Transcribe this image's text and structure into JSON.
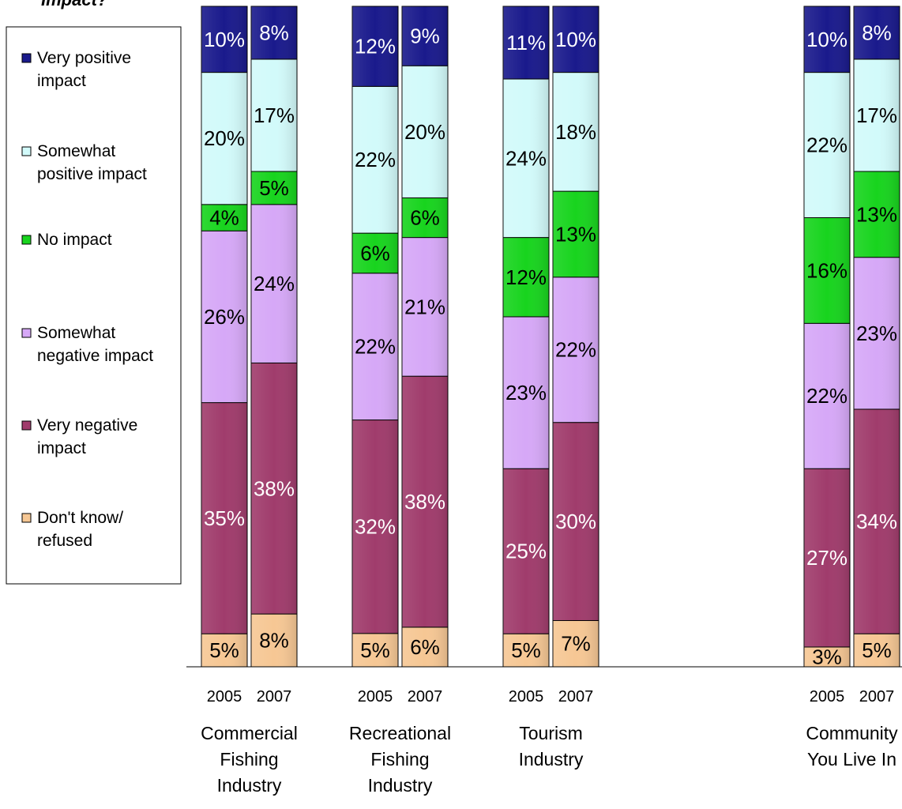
{
  "title_fragment": "Impact?",
  "colors": {
    "very_positive": "#1a1a8c",
    "somewhat_positive": "#d2fafa",
    "no_impact": "#18d41e",
    "somewhat_negative": "#d6a8f7",
    "very_negative": "#a03c6c",
    "dont_know": "#f6c794"
  },
  "legend": [
    {
      "key": "very_positive",
      "lines": [
        "Very positive",
        "impact"
      ]
    },
    {
      "key": "somewhat_positive",
      "lines": [
        "Somewhat",
        "positive impact"
      ]
    },
    {
      "key": "no_impact",
      "lines": [
        "No impact"
      ]
    },
    {
      "key": "somewhat_negative",
      "lines": [
        "Somewhat",
        "negative impact"
      ]
    },
    {
      "key": "very_negative",
      "lines": [
        "Very negative",
        "impact"
      ]
    },
    {
      "key": "dont_know",
      "lines": [
        "Don't know/",
        "refused"
      ]
    }
  ],
  "chart_data": {
    "type": "bar",
    "stacked": true,
    "ylim": [
      0,
      100
    ],
    "grid": false,
    "legend_position": "left",
    "series_order_bottom_to_top": [
      "dont_know",
      "very_negative",
      "somewhat_negative",
      "no_impact",
      "somewhat_positive",
      "very_positive"
    ],
    "groups": [
      {
        "label_lines": [
          "Commercial",
          "Fishing",
          "Industry"
        ],
        "bars": [
          {
            "year": "2005",
            "values": {
              "dont_know": 5,
              "very_negative": 35,
              "somewhat_negative": 26,
              "no_impact": 4,
              "somewhat_positive": 20,
              "very_positive": 10
            }
          },
          {
            "year": "2007",
            "values": {
              "dont_know": 8,
              "very_negative": 38,
              "somewhat_negative": 24,
              "no_impact": 5,
              "somewhat_positive": 17,
              "very_positive": 8
            }
          }
        ]
      },
      {
        "label_lines": [
          "Recreational",
          "Fishing",
          "Industry"
        ],
        "bars": [
          {
            "year": "2005",
            "values": {
              "dont_know": 5,
              "very_negative": 32,
              "somewhat_negative": 22,
              "no_impact": 6,
              "somewhat_positive": 22,
              "very_positive": 12
            }
          },
          {
            "year": "2007",
            "values": {
              "dont_know": 6,
              "very_negative": 38,
              "somewhat_negative": 21,
              "no_impact": 6,
              "somewhat_positive": 20,
              "very_positive": 9
            }
          }
        ]
      },
      {
        "label_lines": [
          "Tourism",
          "Industry"
        ],
        "bars": [
          {
            "year": "2005",
            "values": {
              "dont_know": 5,
              "very_negative": 25,
              "somewhat_negative": 23,
              "no_impact": 12,
              "somewhat_positive": 24,
              "very_positive": 11
            }
          },
          {
            "year": "2007",
            "values": {
              "dont_know": 7,
              "very_negative": 30,
              "somewhat_negative": 22,
              "no_impact": 13,
              "somewhat_positive": 18,
              "very_positive": 10
            }
          }
        ]
      },
      {
        "label_lines": [
          "Community",
          "You Live In"
        ],
        "bars": [
          {
            "year": "2005",
            "values": {
              "dont_know": 3,
              "very_negative": 27,
              "somewhat_negative": 22,
              "no_impact": 16,
              "somewhat_positive": 22,
              "very_positive": 10
            }
          },
          {
            "year": "2007",
            "values": {
              "dont_know": 5,
              "very_negative": 34,
              "somewhat_negative": 23,
              "no_impact": 13,
              "somewhat_positive": 17,
              "very_positive": 8
            }
          }
        ]
      }
    ]
  }
}
